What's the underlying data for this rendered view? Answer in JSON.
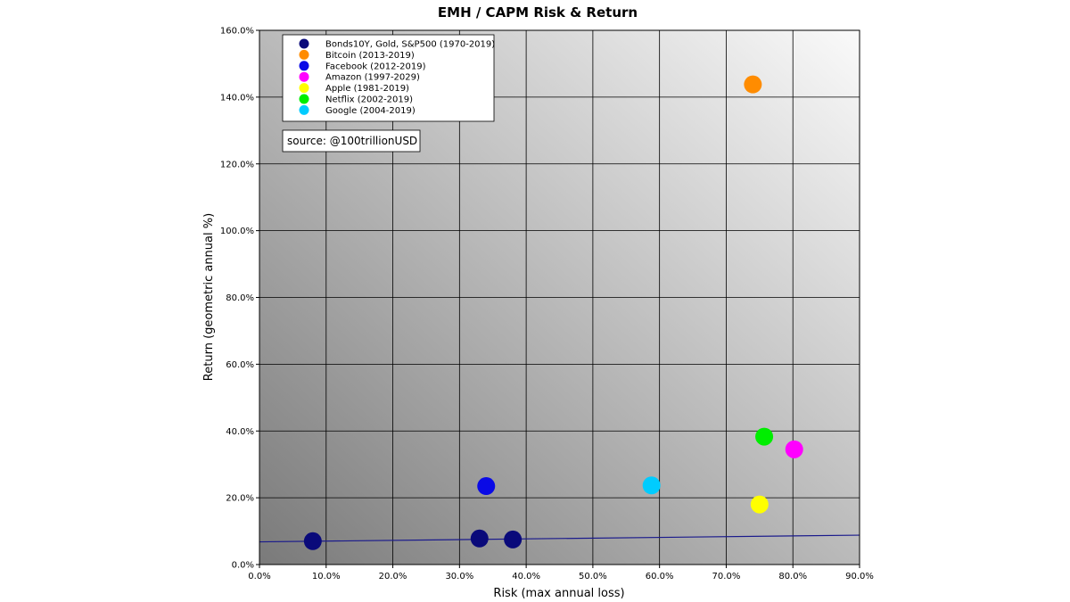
{
  "chart_data": {
    "type": "scatter",
    "title": "EMH / CAPM Risk & Return",
    "xlabel": "Risk (max annual loss)",
    "ylabel": "Return (geometric annual %)",
    "xlim": [
      0,
      90
    ],
    "ylim": [
      0,
      160
    ],
    "x_ticks": [
      "0.0%",
      "10.0%",
      "20.0%",
      "30.0%",
      "40.0%",
      "50.0%",
      "60.0%",
      "70.0%",
      "80.0%",
      "90.0%"
    ],
    "y_ticks": [
      "0.0%",
      "20.0%",
      "40.0%",
      "60.0%",
      "80.0%",
      "100.0%",
      "120.0%",
      "140.0%",
      "160.0%"
    ],
    "grid": true,
    "legend_position": "top-left",
    "annotation": "source: @100trillionUSD",
    "trend_line": {
      "color": "#1a1a8c",
      "points": [
        [
          0,
          6.8
        ],
        [
          90,
          8.8
        ]
      ]
    },
    "series": [
      {
        "name": "Bonds10Y, Gold, S&P500 (1970-2019)",
        "color": "#0a0a7a",
        "points": [
          [
            8.0,
            7.0
          ],
          [
            33.0,
            7.8
          ],
          [
            38.0,
            7.5
          ]
        ]
      },
      {
        "name": "Bitcoin (2013-2019)",
        "color": "#ff8c00",
        "points": [
          [
            74.0,
            143.8
          ]
        ]
      },
      {
        "name": "Facebook (2012-2019)",
        "color": "#0a0ae6",
        "points": [
          [
            34.0,
            23.5
          ]
        ]
      },
      {
        "name": "Amazon (1997-2029)",
        "color": "#ff00ff",
        "points": [
          [
            80.2,
            34.5
          ]
        ]
      },
      {
        "name": "Apple (1981-2019)",
        "color": "#ffff00",
        "points": [
          [
            75.0,
            18.0
          ]
        ]
      },
      {
        "name": "Netflix (2002-2019)",
        "color": "#00ee00",
        "points": [
          [
            75.7,
            38.3
          ]
        ]
      },
      {
        "name": "Google (2004-2019)",
        "color": "#00ccff",
        "points": [
          [
            58.8,
            23.7
          ]
        ]
      }
    ]
  }
}
